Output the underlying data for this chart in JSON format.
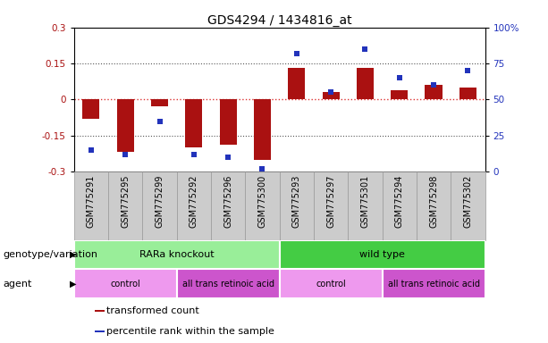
{
  "title": "GDS4294 / 1434816_at",
  "samples": [
    "GSM775291",
    "GSM775295",
    "GSM775299",
    "GSM775292",
    "GSM775296",
    "GSM775300",
    "GSM775293",
    "GSM775297",
    "GSM775301",
    "GSM775294",
    "GSM775298",
    "GSM775302"
  ],
  "bar_values": [
    -0.08,
    -0.22,
    -0.03,
    -0.2,
    -0.19,
    -0.25,
    0.13,
    0.03,
    0.13,
    0.04,
    0.06,
    0.05
  ],
  "dot_values": [
    15,
    12,
    35,
    12,
    10,
    2,
    82,
    55,
    85,
    65,
    60,
    70
  ],
  "ylim_left": [
    -0.3,
    0.3
  ],
  "ylim_right": [
    0,
    100
  ],
  "yticks_left": [
    -0.3,
    -0.15,
    0,
    0.15,
    0.3
  ],
  "yticks_right": [
    0,
    25,
    50,
    75,
    100
  ],
  "ytick_labels_left": [
    "-0.3",
    "-0.15",
    "0",
    "0.15",
    "0.3"
  ],
  "ytick_labels_right": [
    "0",
    "25",
    "50",
    "75",
    "100%"
  ],
  "bar_color": "#aa1111",
  "dot_color": "#2233bb",
  "zero_line_color": "#dd3333",
  "dotted_line_color": "#555555",
  "background_color": "#ffffff",
  "xtick_bg_color": "#cccccc",
  "xtick_border_color": "#999999",
  "genotype_groups": [
    {
      "label": "RARa knockout",
      "start": 0,
      "end": 6,
      "color": "#99ee99"
    },
    {
      "label": "wild type",
      "start": 6,
      "end": 12,
      "color": "#44cc44"
    }
  ],
  "agent_groups": [
    {
      "label": "control",
      "start": 0,
      "end": 3,
      "color": "#ee99ee"
    },
    {
      "label": "all trans retinoic acid",
      "start": 3,
      "end": 6,
      "color": "#cc55cc"
    },
    {
      "label": "control",
      "start": 6,
      "end": 9,
      "color": "#ee99ee"
    },
    {
      "label": "all trans retinoic acid",
      "start": 9,
      "end": 12,
      "color": "#cc55cc"
    }
  ],
  "legend_items": [
    {
      "label": "transformed count",
      "color": "#aa1111"
    },
    {
      "label": "percentile rank within the sample",
      "color": "#2233bb"
    }
  ],
  "title_fontsize": 10,
  "tick_fontsize": 7.5,
  "label_fontsize": 8,
  "row_label_fontsize": 8,
  "xtick_fontsize": 7
}
